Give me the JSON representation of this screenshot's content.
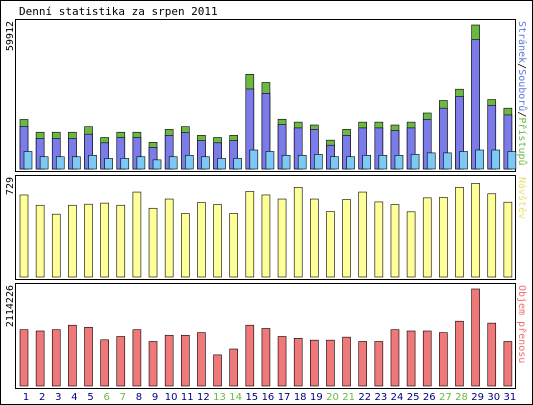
{
  "title": "Denní statistika za srpen 2011",
  "panels": {
    "top": {
      "ymax_label": "59912",
      "legend_parts": [
        {
          "text": "Stránek",
          "color": "#5a78d8"
        },
        {
          "text": "/",
          "color": "#000000"
        },
        {
          "text": "Souborů",
          "color": "#5a78d8"
        },
        {
          "text": "/",
          "color": "#000000"
        },
        {
          "text": "Přístupů",
          "color": "#6cb843"
        }
      ]
    },
    "middle": {
      "ymax_label": "729",
      "side_label": "Návštěv",
      "side_color": "#e8e070"
    },
    "bottom": {
      "ymax_label": "2114226",
      "side_label": "Objem přenosu",
      "side_color": "#f07070"
    }
  },
  "colors": {
    "hits": "#6cb843",
    "files": "#7b7bea",
    "pages": "#7cc8f6",
    "visits": "#ffff99",
    "volume": "#f07878",
    "weekday_label": "#000080",
    "weekend_label": "#6cb843"
  },
  "chart_data": {
    "type": "bar",
    "title": "Denní statistika za srpen 2011",
    "categories": [
      "1",
      "2",
      "3",
      "4",
      "5",
      "6",
      "7",
      "8",
      "9",
      "10",
      "11",
      "12",
      "13",
      "14",
      "15",
      "16",
      "17",
      "18",
      "19",
      "20",
      "21",
      "22",
      "23",
      "24",
      "25",
      "26",
      "27",
      "28",
      "29",
      "30",
      "31"
    ],
    "weekend_days": [
      "6",
      "7",
      "13",
      "14",
      "20",
      "21",
      "27",
      "28"
    ],
    "panels": [
      {
        "name": "top",
        "ymax": 59912,
        "series": [
          {
            "name": "Přístupů",
            "values": [
              20600,
              15300,
              15300,
              15300,
              17600,
              13100,
              15300,
              15300,
              11100,
              16500,
              17600,
              14000,
              13100,
              14000,
              39400,
              36000,
              20700,
              19500,
              18300,
              12000,
              16500,
              19500,
              19500,
              18300,
              19500,
              23300,
              28500,
              33200,
              59912,
              28900,
              25300
            ]
          },
          {
            "name": "Souborů",
            "values": [
              17700,
              12700,
              12700,
              12700,
              14500,
              10900,
              13100,
              13100,
              9000,
              14000,
              15100,
              11800,
              10900,
              11800,
              33300,
              31500,
              18500,
              17100,
              16500,
              9900,
              14000,
              17100,
              17100,
              16000,
              17100,
              20600,
              25300,
              30200,
              53800,
              26500,
              22500
            ]
          },
          {
            "name": "Stránek",
            "values": [
              7300,
              5100,
              5100,
              5100,
              5700,
              4400,
              4400,
              5100,
              3800,
              5100,
              5700,
              5100,
              4400,
              4400,
              7900,
              7300,
              5700,
              5700,
              6100,
              5100,
              5100,
              5700,
              5700,
              5700,
              6100,
              6700,
              6700,
              7300,
              7900,
              7900,
              7300
            ]
          }
        ]
      },
      {
        "name": "middle",
        "ymax": 729,
        "series": [
          {
            "name": "Návštěv",
            "values": [
              623,
              545,
              477,
              545,
              553,
              561,
              545,
              645,
              522,
              592,
              482,
              565,
              550,
              482,
              650,
              623,
              592,
              681,
              592,
              497,
              588,
              645,
              570,
              550,
              495,
              601,
              604,
              681,
              711,
              632,
              568
            ]
          }
        ]
      },
      {
        "name": "bottom",
        "ymax": 2114226,
        "series": [
          {
            "name": "Objem přenosu",
            "values": [
              1227000,
              1199000,
              1227000,
              1325000,
              1280000,
              1007000,
              1079000,
              1227000,
              970000,
              1106000,
              1106000,
              1163000,
              678000,
              806000,
              1325000,
              1254000,
              1079000,
              1040000,
              999000,
              999000,
              1065000,
              970000,
              970000,
              1227000,
              1199000,
              1199000,
              1163000,
              1412000,
              2114226,
              1370000,
              970000
            ]
          }
        ]
      }
    ]
  }
}
